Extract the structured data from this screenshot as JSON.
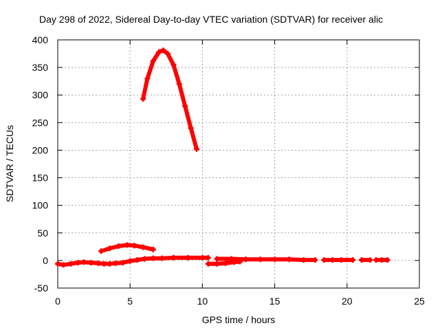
{
  "chart_data": {
    "type": "line",
    "title": "Day 298 of 2022, Sidereal Day-to-day VTEC variation (SDTVAR) for receiver alic",
    "xlabel": "GPS time / hours",
    "ylabel": "SDTVAR / TECUs",
    "xlim": [
      0,
      25
    ],
    "ylim": [
      -50,
      400
    ],
    "xticks": [
      0,
      5,
      10,
      15,
      20,
      25
    ],
    "yticks": [
      -50,
      0,
      50,
      100,
      150,
      200,
      250,
      300,
      350,
      400
    ],
    "grid": true,
    "legend": "none",
    "color": "#ff0000",
    "series": [
      {
        "points": [
          [
            5.9,
            293
          ],
          [
            6.2,
            330
          ],
          [
            6.6,
            362
          ],
          [
            7.0,
            378
          ],
          [
            7.3,
            381
          ],
          [
            7.6,
            375
          ],
          [
            8.0,
            355
          ],
          [
            8.4,
            320
          ],
          [
            8.8,
            280
          ],
          [
            9.2,
            240
          ],
          [
            9.6,
            202
          ]
        ]
      },
      {
        "points": [
          [
            3.0,
            17
          ],
          [
            3.6,
            22
          ],
          [
            4.2,
            26
          ],
          [
            4.8,
            28
          ],
          [
            5.3,
            27
          ],
          [
            5.9,
            24
          ],
          [
            6.6,
            20
          ]
        ]
      },
      {
        "points": [
          [
            0.0,
            -6
          ],
          [
            0.4,
            -8
          ],
          [
            0.9,
            -6
          ],
          [
            1.4,
            -4
          ],
          [
            1.8,
            -3
          ],
          [
            2.3,
            -4
          ],
          [
            2.8,
            -5
          ],
          [
            3.2,
            -6
          ],
          [
            3.6,
            -6
          ],
          [
            4.0,
            -5
          ],
          [
            4.5,
            -4
          ],
          [
            5.0,
            -1
          ],
          [
            5.5,
            1
          ],
          [
            6.0,
            3
          ],
          [
            6.6,
            4
          ],
          [
            7.2,
            4
          ],
          [
            8.0,
            5
          ],
          [
            9.0,
            5
          ],
          [
            10.0,
            5
          ],
          [
            10.4,
            5
          ]
        ]
      },
      {
        "points": [
          [
            10.4,
            -6
          ],
          [
            11.0,
            -6
          ],
          [
            11.6,
            -5
          ],
          [
            12.2,
            -3
          ],
          [
            12.6,
            -2
          ]
        ]
      },
      {
        "points": [
          [
            11.0,
            3
          ],
          [
            12.0,
            3
          ],
          [
            13.0,
            2
          ],
          [
            14.0,
            2
          ],
          [
            15.0,
            2
          ],
          [
            16.0,
            2
          ],
          [
            17.0,
            1
          ],
          [
            17.8,
            1
          ]
        ]
      },
      {
        "points": [
          [
            18.4,
            1
          ],
          [
            19.0,
            1
          ],
          [
            19.6,
            1
          ],
          [
            20.4,
            1
          ]
        ]
      },
      {
        "points": [
          [
            21.0,
            1
          ],
          [
            21.6,
            1
          ]
        ]
      },
      {
        "points": [
          [
            22.0,
            1
          ],
          [
            22.4,
            1
          ],
          [
            22.8,
            1
          ]
        ]
      }
    ]
  }
}
